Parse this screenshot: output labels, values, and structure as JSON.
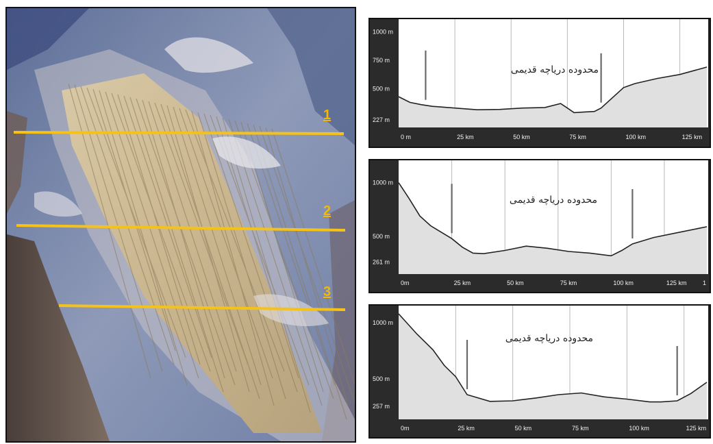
{
  "map": {
    "transects": [
      {
        "label": "1"
      },
      {
        "label": "2"
      },
      {
        "label": "3"
      }
    ],
    "colors": {
      "transect": "#f5c21a"
    }
  },
  "chart_data": [
    {
      "type": "area",
      "annotation": "محدوده دریاچه قدیمی",
      "y_tick_labels": [
        "1000 m",
        "750 m",
        "500 m",
        "227 m"
      ],
      "y_tick_values": [
        1000,
        750,
        500,
        227
      ],
      "x_tick_labels": [
        "0 m",
        "25 km",
        "50 km",
        "75 km",
        "100 km",
        "125 km"
      ],
      "x_tick_values": [
        0,
        25,
        50,
        75,
        100,
        125
      ],
      "xlim": [
        0,
        137
      ],
      "ylim": [
        160,
        1050
      ],
      "lake_boundary_km": [
        12,
        90
      ],
      "series": [
        {
          "x": [
            0,
            5,
            10,
            15,
            25,
            35,
            45,
            55,
            65,
            72,
            75,
            78,
            82,
            87,
            90,
            95,
            100,
            105,
            115,
            125,
            137
          ],
          "y": [
            430,
            380,
            360,
            345,
            330,
            315,
            318,
            330,
            335,
            370,
            330,
            290,
            295,
            300,
            330,
            420,
            510,
            545,
            590,
            625,
            690
          ]
        }
      ]
    },
    {
      "type": "area",
      "annotation": "محدوده دریاچه قدیمی",
      "y_tick_labels": [
        "1000 m",
        "500 m",
        "261 m"
      ],
      "y_tick_values": [
        1000,
        500,
        261
      ],
      "x_tick_labels": [
        "0m",
        "25 km",
        "50 km",
        "75 km",
        "100 km",
        "125 km",
        "1"
      ],
      "x_tick_values": [
        0,
        25,
        50,
        75,
        100,
        125,
        145
      ],
      "xlim": [
        0,
        145
      ],
      "ylim": [
        150,
        1080
      ],
      "lake_boundary_km": [
        25,
        110
      ],
      "series": [
        {
          "x": [
            0,
            5,
            10,
            15,
            25,
            30,
            35,
            40,
            50,
            60,
            70,
            80,
            90,
            100,
            105,
            110,
            120,
            130,
            145
          ],
          "y": [
            1000,
            850,
            690,
            600,
            480,
            400,
            345,
            340,
            370,
            410,
            390,
            360,
            345,
            320,
            370,
            430,
            490,
            530,
            590
          ]
        }
      ]
    },
    {
      "type": "area",
      "annotation": "محدوده دریاچه قدیمی",
      "y_tick_labels": [
        "1000 m",
        "500 m",
        "257 m"
      ],
      "y_tick_values": [
        1000,
        500,
        257
      ],
      "x_tick_labels": [
        "0m",
        "25 km",
        "50 km",
        "75 km",
        "100 km",
        "125 km"
      ],
      "x_tick_values": [
        0,
        25,
        50,
        75,
        100,
        125
      ],
      "xlim": [
        0,
        135
      ],
      "ylim": [
        140,
        1080
      ],
      "lake_boundary_km": [
        30,
        122
      ],
      "series": [
        {
          "x": [
            0,
            8,
            15,
            20,
            25,
            30,
            40,
            50,
            60,
            70,
            80,
            90,
            100,
            110,
            115,
            122,
            128,
            135
          ],
          "y": [
            1080,
            900,
            760,
            620,
            520,
            360,
            300,
            305,
            330,
            360,
            375,
            340,
            320,
            295,
            295,
            305,
            370,
            470
          ]
        }
      ]
    }
  ]
}
